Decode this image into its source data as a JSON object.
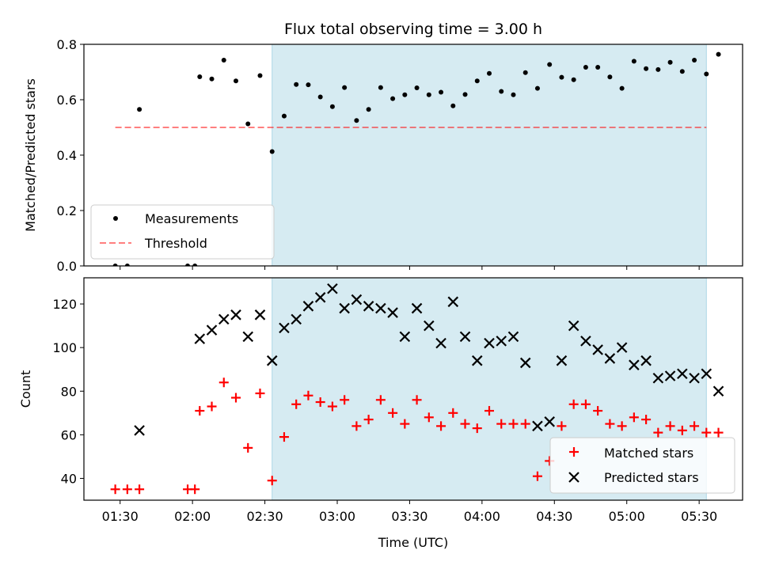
{
  "title": "Flux total observing time = 3.00 h",
  "colors": {
    "span": "#add8e6",
    "threshold": "#ff0000",
    "measurement": "#000000",
    "matched": "#ff0000",
    "predicted": "#000000"
  },
  "chart_data": [
    {
      "type": "scatter",
      "panel": "top",
      "ylabel": "Matched/Predicted stars",
      "ylim": [
        0,
        0.8
      ],
      "yticks": [
        "0.0",
        "0.2",
        "0.4",
        "0.6",
        "0.8"
      ],
      "xlim_minutes": [
        75,
        348
      ],
      "shaded_span_minutes": [
        153,
        333
      ],
      "threshold": {
        "value": 0.5,
        "x_range_minutes": [
          88,
          333
        ]
      },
      "legend": {
        "position": "lower left",
        "entries": [
          "Measurements",
          "Threshold"
        ]
      },
      "series": [
        {
          "name": "Measurements",
          "points": [
            [
              88,
              0
            ],
            [
              93,
              0
            ],
            [
              98,
              0.565
            ],
            [
              118,
              0
            ],
            [
              121,
              0
            ],
            [
              123,
              0.683
            ],
            [
              128,
              0.675
            ],
            [
              133,
              0.743
            ],
            [
              138,
              0.668
            ],
            [
              143,
              0.513
            ],
            [
              148,
              0.687
            ],
            [
              153,
              0.413
            ],
            [
              158,
              0.541
            ],
            [
              163,
              0.655
            ],
            [
              168,
              0.654
            ],
            [
              173,
              0.61
            ],
            [
              178,
              0.575
            ],
            [
              183,
              0.644
            ],
            [
              188,
              0.525
            ],
            [
              193,
              0.565
            ],
            [
              198,
              0.644
            ],
            [
              203,
              0.604
            ],
            [
              208,
              0.618
            ],
            [
              213,
              0.643
            ],
            [
              218,
              0.618
            ],
            [
              223,
              0.627
            ],
            [
              228,
              0.578
            ],
            [
              233,
              0.619
            ],
            [
              238,
              0.668
            ],
            [
              243,
              0.695
            ],
            [
              248,
              0.63
            ],
            [
              253,
              0.618
            ],
            [
              258,
              0.698
            ],
            [
              263,
              0.641
            ],
            [
              268,
              0.727
            ],
            [
              273,
              0.681
            ],
            [
              278,
              0.672
            ],
            [
              283,
              0.717
            ],
            [
              288,
              0.717
            ],
            [
              293,
              0.682
            ],
            [
              298,
              0.641
            ],
            [
              303,
              0.739
            ],
            [
              308,
              0.712
            ],
            [
              313,
              0.709
            ],
            [
              318,
              0.735
            ],
            [
              323,
              0.702
            ],
            [
              328,
              0.743
            ],
            [
              333,
              0.693
            ],
            [
              338,
              0.764
            ]
          ]
        }
      ]
    },
    {
      "type": "scatter",
      "panel": "bottom",
      "xlabel": "Time (UTC)",
      "ylabel": "Count",
      "ylim": [
        30,
        132
      ],
      "yticks": [
        "40",
        "60",
        "80",
        "100",
        "120"
      ],
      "xticks": [
        "01:30",
        "02:00",
        "02:30",
        "03:00",
        "03:30",
        "04:00",
        "04:30",
        "05:00",
        "05:30"
      ],
      "xtick_minutes": [
        90,
        120,
        150,
        180,
        210,
        240,
        270,
        300,
        330
      ],
      "xlim_minutes": [
        75,
        348
      ],
      "shaded_span_minutes": [
        153,
        333
      ],
      "legend": {
        "position": "lower right",
        "entries": [
          "Matched stars",
          "Predicted stars"
        ]
      },
      "series": [
        {
          "name": "Matched stars",
          "marker": "+",
          "points": [
            [
              88,
              35
            ],
            [
              93,
              35
            ],
            [
              98,
              35
            ],
            [
              118,
              35
            ],
            [
              121,
              35
            ],
            [
              123,
              71
            ],
            [
              128,
              73
            ],
            [
              133,
              84
            ],
            [
              138,
              77
            ],
            [
              143,
              54
            ],
            [
              148,
              79
            ],
            [
              153,
              39
            ],
            [
              158,
              59
            ],
            [
              163,
              74
            ],
            [
              168,
              78
            ],
            [
              173,
              75
            ],
            [
              178,
              73
            ],
            [
              183,
              76
            ],
            [
              188,
              64
            ],
            [
              193,
              67
            ],
            [
              198,
              76
            ],
            [
              203,
              70
            ],
            [
              208,
              65
            ],
            [
              213,
              76
            ],
            [
              218,
              68
            ],
            [
              223,
              64
            ],
            [
              228,
              70
            ],
            [
              233,
              65
            ],
            [
              238,
              63
            ],
            [
              243,
              71
            ],
            [
              248,
              65
            ],
            [
              253,
              65
            ],
            [
              258,
              65
            ],
            [
              263,
              41
            ],
            [
              268,
              48
            ],
            [
              273,
              64
            ],
            [
              278,
              74
            ],
            [
              283,
              74
            ],
            [
              288,
              71
            ],
            [
              293,
              65
            ],
            [
              298,
              64
            ],
            [
              303,
              68
            ],
            [
              308,
              67
            ],
            [
              313,
              61
            ],
            [
              318,
              64
            ],
            [
              323,
              62
            ],
            [
              328,
              64
            ],
            [
              333,
              61
            ],
            [
              338,
              61
            ]
          ]
        },
        {
          "name": "Predicted stars",
          "marker": "x",
          "points": [
            [
              98,
              62
            ],
            [
              123,
              104
            ],
            [
              128,
              108
            ],
            [
              133,
              113
            ],
            [
              138,
              115
            ],
            [
              143,
              105
            ],
            [
              148,
              115
            ],
            [
              153,
              94
            ],
            [
              158,
              109
            ],
            [
              163,
              113
            ],
            [
              168,
              119
            ],
            [
              173,
              123
            ],
            [
              178,
              127
            ],
            [
              183,
              118
            ],
            [
              188,
              122
            ],
            [
              193,
              119
            ],
            [
              198,
              118
            ],
            [
              203,
              116
            ],
            [
              208,
              105
            ],
            [
              213,
              118
            ],
            [
              218,
              110
            ],
            [
              223,
              102
            ],
            [
              228,
              121
            ],
            [
              233,
              105
            ],
            [
              238,
              94
            ],
            [
              243,
              102
            ],
            [
              248,
              103
            ],
            [
              253,
              105
            ],
            [
              258,
              93
            ],
            [
              263,
              64
            ],
            [
              268,
              66
            ],
            [
              273,
              94
            ],
            [
              278,
              110
            ],
            [
              283,
              103
            ],
            [
              288,
              99
            ],
            [
              293,
              95
            ],
            [
              298,
              100
            ],
            [
              303,
              92
            ],
            [
              308,
              94
            ],
            [
              313,
              86
            ],
            [
              318,
              87
            ],
            [
              323,
              88
            ],
            [
              328,
              86
            ],
            [
              333,
              88
            ],
            [
              338,
              80
            ]
          ]
        }
      ]
    }
  ]
}
